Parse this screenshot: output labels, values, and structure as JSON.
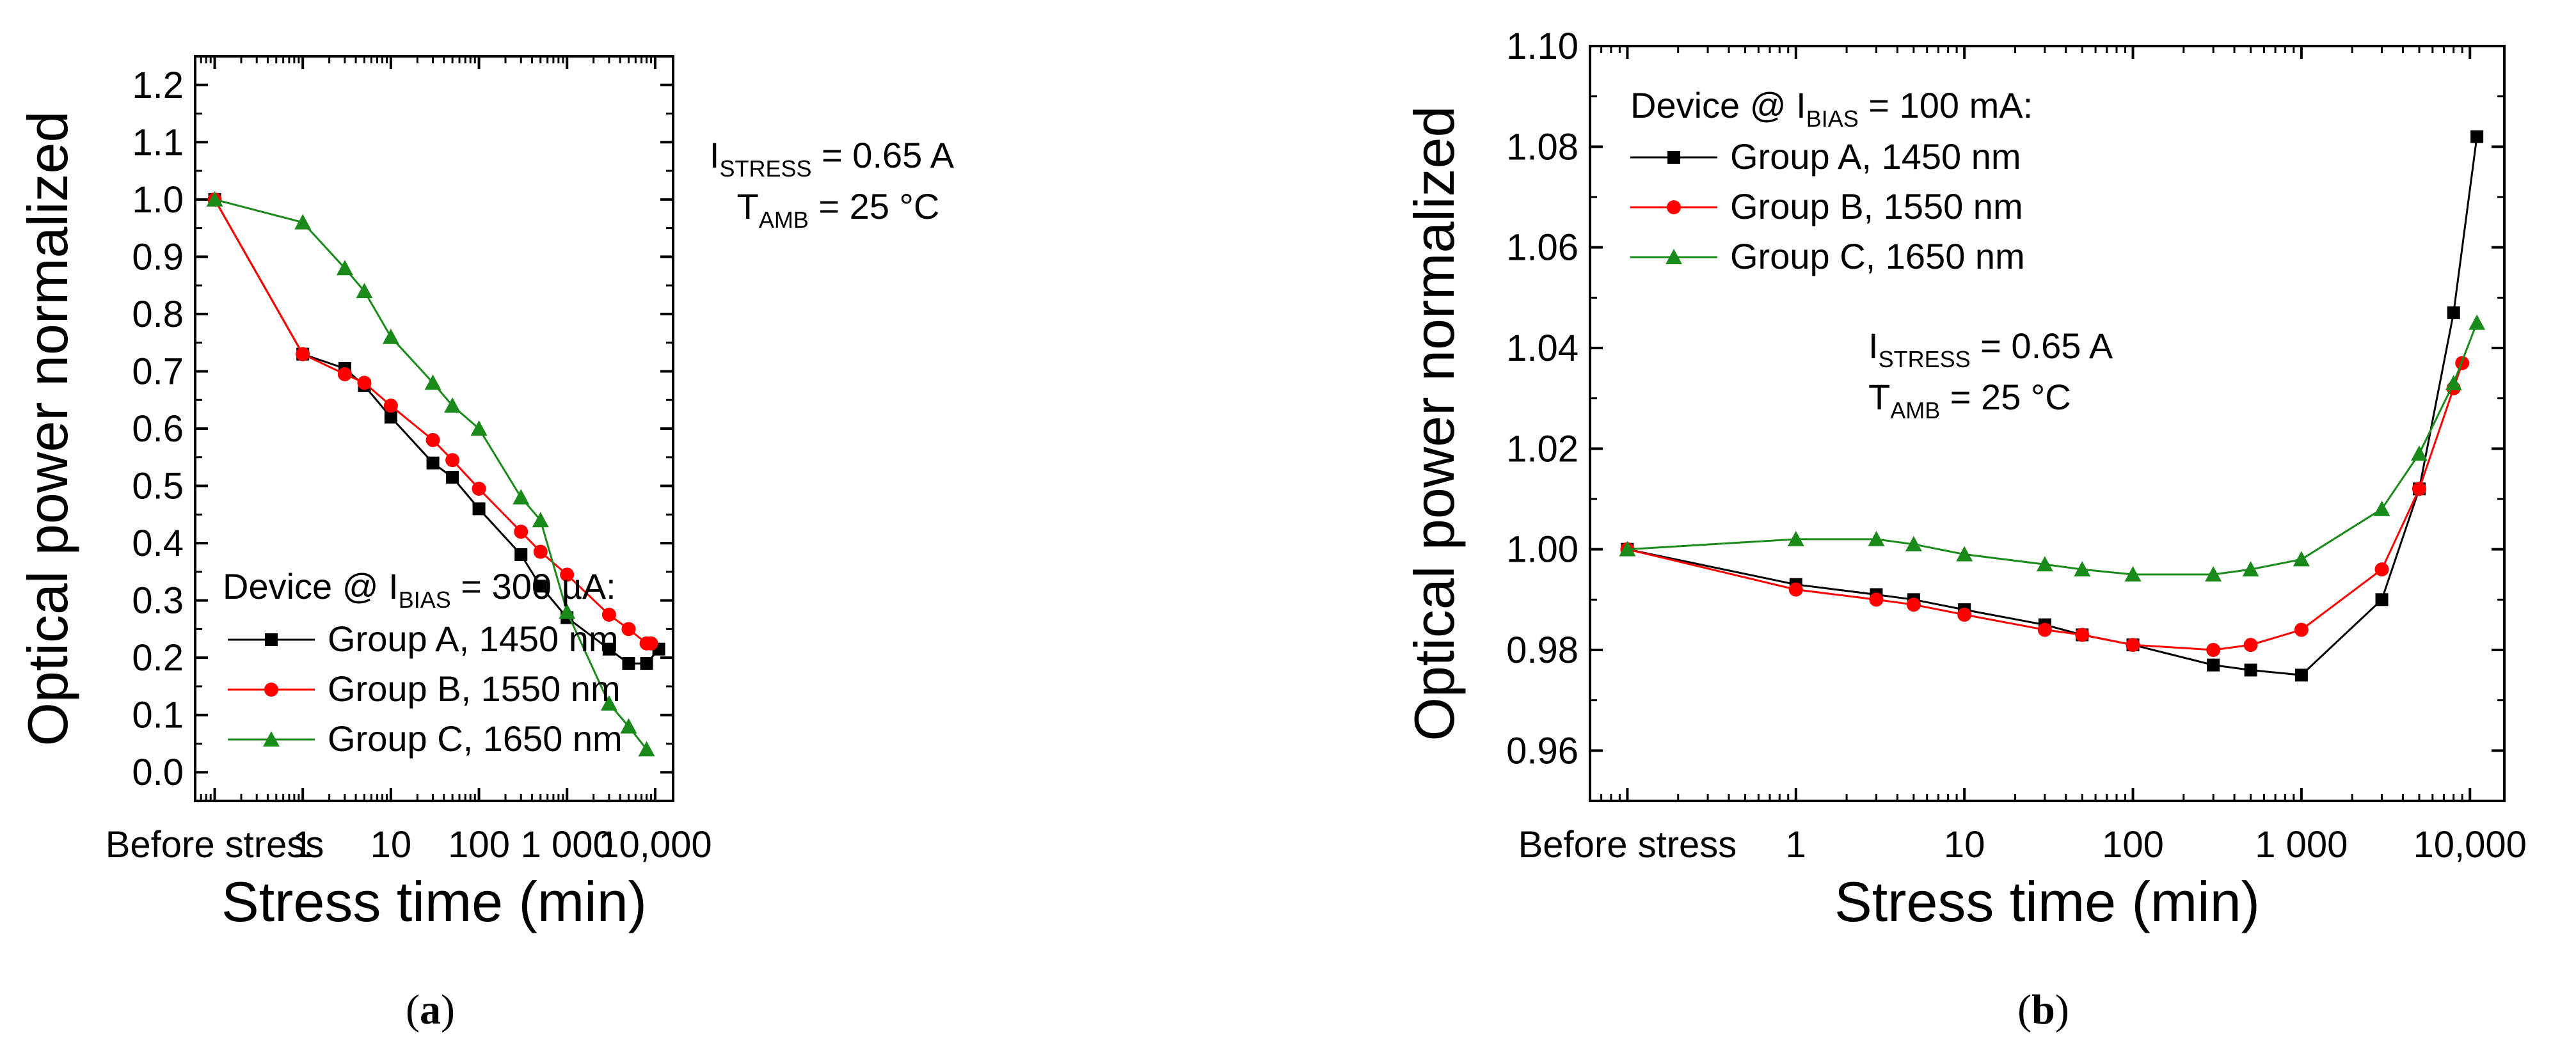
{
  "colors": {
    "group_a": "#000000",
    "group_b": "#ff0000",
    "group_c": "#1a8a1a",
    "axis": "#000000",
    "background": "#ffffff"
  },
  "chart_data": [
    {
      "type": "line",
      "panel_label": "a",
      "caption_open": "(",
      "caption_close": ")",
      "title": "",
      "xlabel": "Stress time (min)",
      "ylabel": "Optical power normalized",
      "x_scale": "log",
      "x_before_stress_value": 0.1,
      "xlim": [
        0.06,
        16000
      ],
      "ylim": [
        -0.05,
        1.25
      ],
      "x_ticks": [
        {
          "value": 0.1,
          "label": "Before stress"
        },
        {
          "value": 1,
          "label": "1"
        },
        {
          "value": 10,
          "label": "10"
        },
        {
          "value": 100,
          "label": "100"
        },
        {
          "value": 1000,
          "label": "1 000"
        },
        {
          "value": 10000,
          "label": "10,000"
        }
      ],
      "y_ticks": [
        0.0,
        0.1,
        0.2,
        0.3,
        0.4,
        0.5,
        0.6,
        0.7,
        0.8,
        0.9,
        1.0,
        1.1,
        1.2
      ],
      "y_tick_decimals": 1,
      "legend_placement": "bottom-left",
      "legend_title": {
        "prefix": "Device @ I",
        "sub": "BIAS",
        "suffix": " = 300 µA:"
      },
      "annotations": [
        {
          "main": "I",
          "sub": "STRESS",
          "rest": " = 0.65 A"
        },
        {
          "main": "T",
          "sub": "AMB",
          "rest": " = 25 °C"
        }
      ],
      "series": [
        {
          "name": "Group A, 1450 nm",
          "color": "#000000",
          "marker": "square",
          "x": [
            0.1,
            1,
            3,
            5,
            10,
            30,
            50,
            100,
            300,
            500,
            1000,
            3000,
            5000,
            8000,
            11000
          ],
          "y": [
            1.0,
            0.73,
            0.705,
            0.675,
            0.62,
            0.54,
            0.515,
            0.46,
            0.38,
            0.325,
            0.27,
            0.215,
            0.19,
            0.19,
            0.215
          ]
        },
        {
          "name": "Group B, 1550 nm",
          "color": "#ff0000",
          "marker": "circle",
          "x": [
            0.1,
            1,
            3,
            5,
            10,
            30,
            50,
            100,
            300,
            500,
            1000,
            3000,
            5000,
            8000,
            9000
          ],
          "y": [
            1.0,
            0.73,
            0.695,
            0.68,
            0.64,
            0.58,
            0.545,
            0.495,
            0.42,
            0.385,
            0.345,
            0.275,
            0.25,
            0.225,
            0.225
          ]
        },
        {
          "name": "Group C, 1650 nm",
          "color": "#1a8a1a",
          "marker": "triangle",
          "x": [
            0.1,
            1,
            3,
            5,
            10,
            30,
            50,
            100,
            300,
            500,
            1000,
            3000,
            5000,
            8000
          ],
          "y": [
            1.0,
            0.96,
            0.88,
            0.84,
            0.76,
            0.68,
            0.64,
            0.6,
            0.48,
            0.44,
            0.28,
            0.12,
            0.08,
            0.04
          ]
        }
      ]
    },
    {
      "type": "line",
      "panel_label": "b",
      "caption_open": "(",
      "caption_close": ")",
      "title": "",
      "xlabel": "Stress time (min)",
      "ylabel": "Optical power normalized",
      "x_scale": "log",
      "x_before_stress_value": 0.1,
      "xlim": [
        0.06,
        16000
      ],
      "ylim": [
        0.95,
        1.1
      ],
      "x_ticks": [
        {
          "value": 0.1,
          "label": "Before stress"
        },
        {
          "value": 1,
          "label": "1"
        },
        {
          "value": 10,
          "label": "10"
        },
        {
          "value": 100,
          "label": "100"
        },
        {
          "value": 1000,
          "label": "1 000"
        },
        {
          "value": 10000,
          "label": "10,000"
        }
      ],
      "y_ticks": [
        0.96,
        0.98,
        1.0,
        1.02,
        1.04,
        1.06,
        1.08,
        1.1
      ],
      "y_tick_decimals": 2,
      "legend_placement": "top-left",
      "legend_title": {
        "prefix": "Device @ I",
        "sub": "BIAS",
        "suffix": " = 100 mA:"
      },
      "annotations": [
        {
          "main": "I",
          "sub": "STRESS",
          "rest": " = 0.65 A"
        },
        {
          "main": "T",
          "sub": "AMB",
          "rest": " = 25 °C"
        }
      ],
      "series": [
        {
          "name": "Group A, 1450 nm",
          "color": "#000000",
          "marker": "square",
          "x": [
            0.1,
            1,
            3,
            5,
            10,
            30,
            50,
            100,
            300,
            500,
            1000,
            3000,
            5000,
            8000,
            11000
          ],
          "y": [
            1.0,
            0.993,
            0.991,
            0.99,
            0.988,
            0.985,
            0.983,
            0.981,
            0.977,
            0.976,
            0.975,
            0.99,
            1.012,
            1.047,
            1.082
          ]
        },
        {
          "name": "Group B, 1550 nm",
          "color": "#ff0000",
          "marker": "circle",
          "x": [
            0.1,
            1,
            3,
            5,
            10,
            30,
            50,
            100,
            300,
            500,
            1000,
            3000,
            5000,
            8000,
            9000
          ],
          "y": [
            1.0,
            0.992,
            0.99,
            0.989,
            0.987,
            0.984,
            0.983,
            0.981,
            0.98,
            0.981,
            0.984,
            0.996,
            1.012,
            1.032,
            1.037
          ]
        },
        {
          "name": "Group C, 1650 nm",
          "color": "#1a8a1a",
          "marker": "triangle",
          "x": [
            0.1,
            1,
            3,
            5,
            10,
            30,
            50,
            100,
            300,
            500,
            1000,
            3000,
            5000,
            8000,
            11000
          ],
          "y": [
            1.0,
            1.002,
            1.002,
            1.001,
            0.999,
            0.997,
            0.996,
            0.995,
            0.995,
            0.996,
            0.998,
            1.008,
            1.019,
            1.033,
            1.045
          ]
        }
      ]
    }
  ]
}
